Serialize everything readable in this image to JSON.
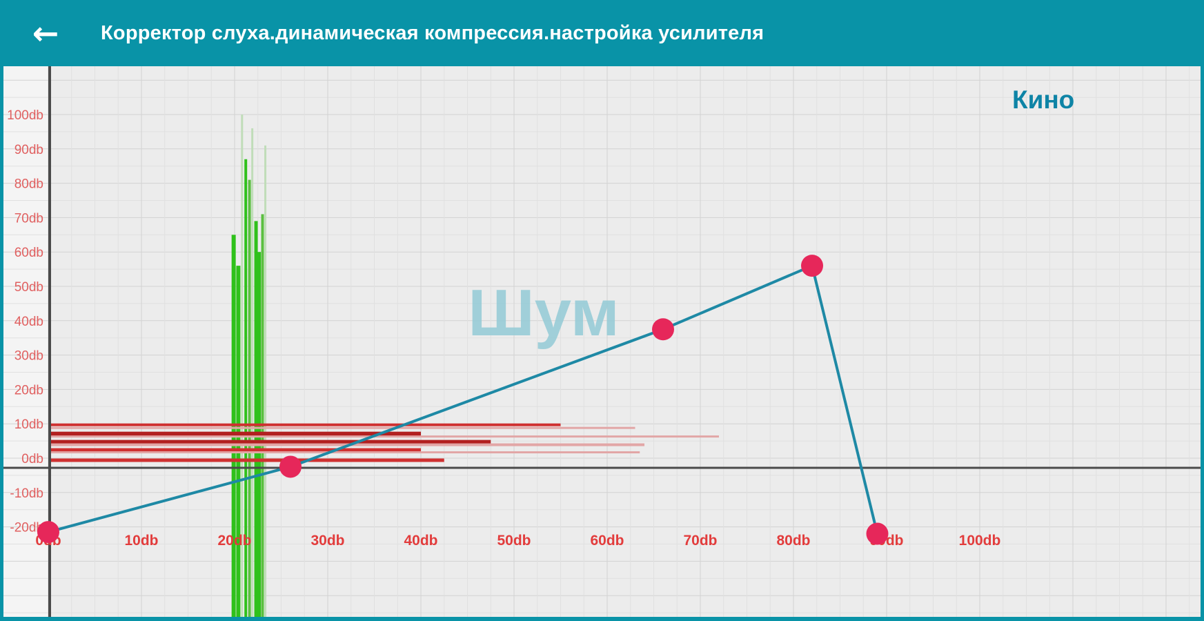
{
  "header": {
    "back_icon": "←",
    "title": "Корректор слуха.динамическая компрессия.настройка усилителя"
  },
  "chart": {
    "profile_label": "Кино",
    "watermark": "Шум"
  },
  "colors": {
    "app_bar": "#0993a7",
    "curve": "#1e89a5",
    "curve_point": "#e6275a",
    "x_tick": "#e23c3c",
    "y_tick": "#e06060",
    "grid_major": "#d2d2d2",
    "grid_minor": "#e0e0e0",
    "plot_bg": "#ececec",
    "label_strip_bg": "#f4f4f4",
    "axis_dark": "#4a4a4a",
    "green_bright": "#2fc11b",
    "green_mid": "#5abf3f",
    "green_pale": "#c0ddb9",
    "red_dark": "#b22020",
    "red_mid": "#cf3030",
    "red_faint": "#e2a6a6"
  },
  "chart_data": {
    "type": "line",
    "title": "Кино",
    "watermark": "Шум",
    "x_ticks": [
      "0db",
      "10db",
      "20db",
      "30db",
      "40db",
      "50db",
      "60db",
      "70db",
      "80db",
      "90db",
      "100db"
    ],
    "x_tick_values": [
      0,
      10,
      20,
      30,
      40,
      50,
      60,
      70,
      80,
      90,
      100
    ],
    "y_ticks": [
      "100db",
      "90db",
      "80db",
      "70db",
      "60db",
      "50db",
      "40db",
      "30db",
      "20db",
      "10db",
      "0db",
      "-10db",
      "-20db"
    ],
    "y_tick_values": [
      100,
      90,
      80,
      70,
      60,
      50,
      40,
      30,
      20,
      10,
      0,
      -10,
      -20
    ],
    "x_visible_range": [
      0,
      124
    ],
    "y_visible_range": [
      -46,
      114
    ],
    "grid": {
      "x_minor_step": 2.5,
      "x_major_step": 10,
      "y_minor_step": 5,
      "y_major_step": 10
    },
    "marker_line_y": -2.8,
    "compression_curve": {
      "points": [
        {
          "x": 0,
          "y": -21.5
        },
        {
          "x": 26,
          "y": -2.5
        },
        {
          "x": 66,
          "y": 37.5
        },
        {
          "x": 82,
          "y": 56
        },
        {
          "x": 89,
          "y": -22
        }
      ]
    },
    "green_spectrum_bars": [
      {
        "x": 19.9,
        "level": 65,
        "tone": "bright",
        "width": 6
      },
      {
        "x": 20.4,
        "level": 56,
        "tone": "bright",
        "width": 6
      },
      {
        "x": 20.8,
        "level": 100,
        "tone": "pale",
        "width": 3
      },
      {
        "x": 21.2,
        "level": 87,
        "tone": "bright",
        "width": 4
      },
      {
        "x": 21.6,
        "level": 81,
        "tone": "mid",
        "width": 4
      },
      {
        "x": 21.9,
        "level": 96,
        "tone": "pale",
        "width": 3
      },
      {
        "x": 22.3,
        "level": 69,
        "tone": "bright",
        "width": 5
      },
      {
        "x": 22.6,
        "level": 60,
        "tone": "bright",
        "width": 6
      },
      {
        "x": 23.0,
        "level": 71,
        "tone": "mid",
        "width": 4
      },
      {
        "x": 23.3,
        "level": 91,
        "tone": "pale",
        "width": 3
      }
    ],
    "red_level_bars": [
      {
        "y": 9.7,
        "length": 55,
        "thickness": 4,
        "tone": "mid"
      },
      {
        "y": 8.8,
        "length": 63,
        "thickness": 3,
        "tone": "faint"
      },
      {
        "y": 7.0,
        "length": 40,
        "thickness": 7,
        "tone": "dark"
      },
      {
        "y": 6.3,
        "length": 72,
        "thickness": 3,
        "tone": "faint"
      },
      {
        "y": 4.7,
        "length": 47.5,
        "thickness": 6,
        "tone": "dark"
      },
      {
        "y": 3.9,
        "length": 64,
        "thickness": 4,
        "tone": "faint"
      },
      {
        "y": 2.4,
        "length": 40,
        "thickness": 5,
        "tone": "mid"
      },
      {
        "y": 1.7,
        "length": 63.5,
        "thickness": 3,
        "tone": "faint"
      },
      {
        "y": -0.6,
        "length": 42.5,
        "thickness": 5,
        "tone": "mid"
      }
    ]
  }
}
